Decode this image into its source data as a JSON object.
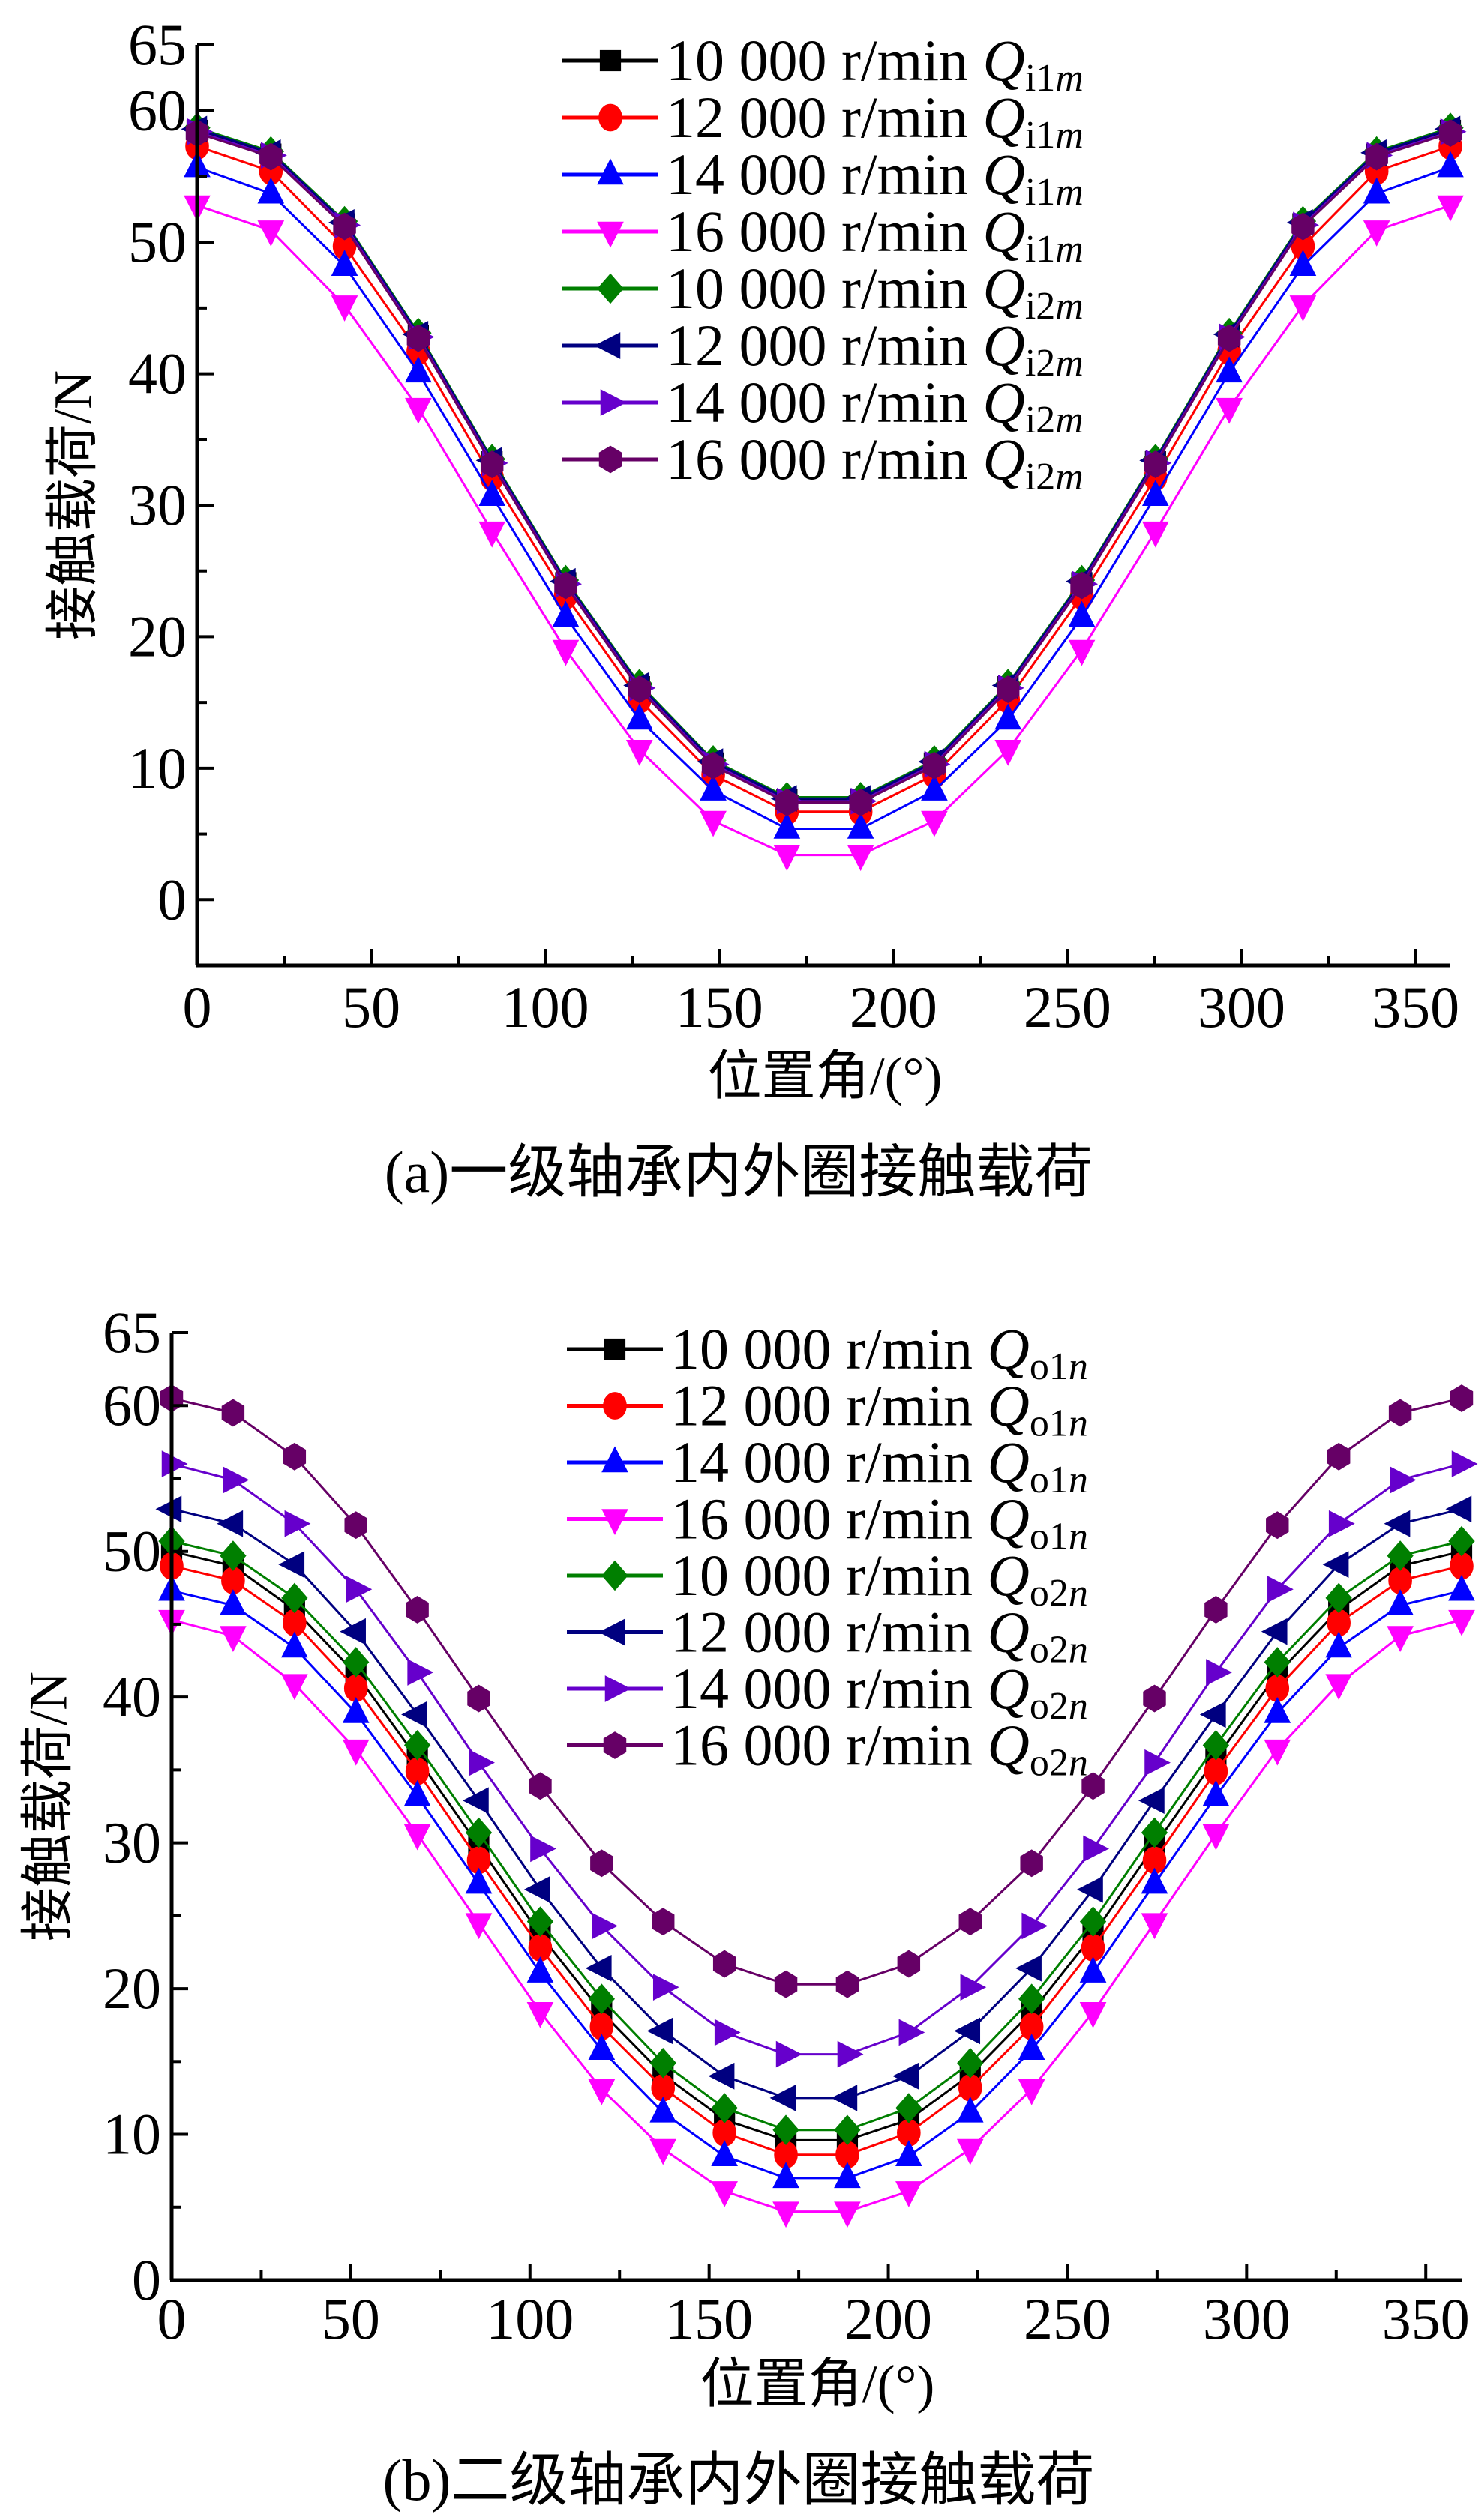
{
  "chart_data": [
    {
      "type": "line",
      "panel": "a",
      "caption": "(a)一级轴承内外圈接触载荷",
      "xlabel": "位置角/(°)",
      "ylabel": "接触载荷/N",
      "xlim": [
        0,
        360
      ],
      "ylim": [
        -5,
        65
      ],
      "xticks": [
        "0",
        "50",
        "100",
        "150",
        "200",
        "250",
        "300",
        "350"
      ],
      "yticks": [
        "0",
        "10",
        "20",
        "30",
        "40",
        "50",
        "60",
        "65"
      ],
      "ytick_values": [
        0,
        10,
        20,
        30,
        40,
        50,
        60,
        65
      ],
      "xtick_values": [
        0,
        50,
        100,
        150,
        200,
        250,
        300,
        350
      ],
      "grid": false,
      "legend_position": "top-center",
      "x": [
        0,
        21.18,
        42.35,
        63.53,
        84.71,
        105.88,
        127.06,
        148.24,
        169.41,
        190.59,
        211.76,
        232.94,
        254.12,
        275.29,
        296.47,
        317.65,
        338.82,
        360
      ],
      "series": [
        {
          "name": "10 000 r/min Q",
          "sub": "i1",
          "subi": "m",
          "color": "#000000",
          "marker": "square",
          "values": [
            58.5,
            56.7,
            51.4,
            42.9,
            33.3,
            24.1,
            16.2,
            10.4,
            7.6,
            7.6,
            10.4,
            16.2,
            24.1,
            33.3,
            42.9,
            51.4,
            56.7,
            58.5
          ]
        },
        {
          "name": "12 000 r/min Q",
          "sub": "i1",
          "subi": "m",
          "color": "#ff0000",
          "marker": "circle",
          "values": [
            57.3,
            55.4,
            49.7,
            41.7,
            32.1,
            23.1,
            15.2,
            9.5,
            6.7,
            6.7,
            9.5,
            15.2,
            23.1,
            32.1,
            41.7,
            49.7,
            55.4,
            57.3
          ]
        },
        {
          "name": "14 000 r/min Q",
          "sub": "i1",
          "subi": "m",
          "color": "#0000ff",
          "marker": "triangle-up",
          "values": [
            55.7,
            53.7,
            48.2,
            40.1,
            30.7,
            21.5,
            13.7,
            8.3,
            5.4,
            5.4,
            8.3,
            13.7,
            21.5,
            30.7,
            40.1,
            48.2,
            53.7,
            55.7
          ]
        },
        {
          "name": "16 000 r/min Q",
          "sub": "i1",
          "subi": "m",
          "color": "#ff00ff",
          "marker": "triangle-down",
          "values": [
            52.8,
            50.9,
            45.2,
            37.4,
            28.0,
            19.0,
            11.4,
            6.0,
            3.4,
            3.4,
            6.0,
            11.4,
            19.0,
            28.0,
            37.4,
            45.2,
            50.9,
            52.8
          ]
        },
        {
          "name": "10 000 r/min Q",
          "sub": "i2",
          "subi": "m",
          "color": "#007f00",
          "marker": "diamond",
          "values": [
            58.7,
            56.9,
            51.6,
            43.1,
            33.5,
            24.3,
            16.4,
            10.6,
            7.8,
            7.8,
            10.6,
            16.4,
            24.3,
            33.5,
            43.1,
            51.6,
            56.9,
            58.7
          ]
        },
        {
          "name": "12 000 r/min Q",
          "sub": "i2",
          "subi": "m",
          "color": "#000080",
          "marker": "triangle-left",
          "values": [
            58.6,
            56.8,
            51.5,
            43.0,
            33.4,
            24.2,
            16.3,
            10.5,
            7.7,
            7.7,
            10.5,
            16.3,
            24.2,
            33.4,
            43.0,
            51.5,
            56.8,
            58.6
          ]
        },
        {
          "name": "14 000 r/min Q",
          "sub": "i2",
          "subi": "m",
          "color": "#6600cc",
          "marker": "triangle-right",
          "values": [
            58.4,
            56.6,
            51.3,
            42.8,
            33.2,
            24.0,
            16.1,
            10.3,
            7.5,
            7.5,
            10.3,
            16.1,
            24.0,
            33.2,
            42.8,
            51.3,
            56.6,
            58.4
          ]
        },
        {
          "name": "16 000 r/min Q",
          "sub": "i2",
          "subi": "m",
          "color": "#660066",
          "marker": "hexagon",
          "values": [
            58.3,
            56.5,
            51.2,
            42.7,
            33.1,
            23.9,
            16.0,
            10.2,
            7.4,
            7.4,
            10.2,
            16.0,
            23.9,
            33.1,
            42.7,
            51.2,
            56.5,
            58.3
          ]
        }
      ]
    },
    {
      "type": "line",
      "panel": "b",
      "caption": "(b)二级轴承内外圈接触载荷",
      "xlabel": "位置角/(°)",
      "ylabel": "接触载荷/N",
      "xlim": [
        0,
        360
      ],
      "ylim": [
        0,
        65
      ],
      "xticks": [
        "0",
        "50",
        "100",
        "150",
        "200",
        "250",
        "300",
        "350"
      ],
      "yticks": [
        "0",
        "10",
        "20",
        "30",
        "40",
        "50",
        "60",
        "65"
      ],
      "ytick_values": [
        0,
        10,
        20,
        30,
        40,
        50,
        60,
        65
      ],
      "xtick_values": [
        0,
        50,
        100,
        150,
        200,
        250,
        300,
        350
      ],
      "grid": false,
      "legend_position": "top-center",
      "x": [
        0,
        17.14,
        34.29,
        51.43,
        68.57,
        85.71,
        102.86,
        120,
        137.14,
        154.29,
        171.43,
        188.57,
        205.71,
        222.86,
        240,
        257.14,
        274.29,
        291.43,
        308.57,
        325.71,
        342.86,
        360
      ],
      "series": [
        {
          "name": "10 000 r/min Q",
          "sub": "o1",
          "subi": "n",
          "color": "#000000",
          "marker": "square",
          "values": [
            50.0,
            49.0,
            46.0,
            41.6,
            35.8,
            29.8,
            23.7,
            18.4,
            14.1,
            11.0,
            9.6,
            9.6,
            11.0,
            14.1,
            18.4,
            23.7,
            29.8,
            35.8,
            41.6,
            46.0,
            49.0,
            50.0
          ]
        },
        {
          "name": "12 000 r/min Q",
          "sub": "o1",
          "subi": "n",
          "color": "#ff0000",
          "marker": "circle",
          "values": [
            49.0,
            48.0,
            45.1,
            40.6,
            34.9,
            28.8,
            22.8,
            17.4,
            13.2,
            10.1,
            8.6,
            8.6,
            10.1,
            13.2,
            17.4,
            22.8,
            28.8,
            34.9,
            40.6,
            45.1,
            48.0,
            49.0
          ]
        },
        {
          "name": "14 000 r/min Q",
          "sub": "o1",
          "subi": "n",
          "color": "#0000ff",
          "marker": "triangle-up",
          "values": [
            47.3,
            46.3,
            43.4,
            38.9,
            33.2,
            27.2,
            21.1,
            15.8,
            11.5,
            8.5,
            7.0,
            7.0,
            8.5,
            11.5,
            15.8,
            21.1,
            27.2,
            33.2,
            38.9,
            43.4,
            46.3,
            47.3
          ]
        },
        {
          "name": "16 000 r/min Q",
          "sub": "o1",
          "subi": "n",
          "color": "#ff00ff",
          "marker": "triangle-down",
          "values": [
            45.3,
            44.2,
            40.9,
            36.4,
            30.6,
            24.5,
            18.4,
            13.1,
            9.0,
            6.1,
            4.7,
            4.7,
            6.1,
            9.0,
            13.1,
            18.4,
            24.5,
            30.6,
            36.4,
            40.9,
            44.2,
            45.3
          ]
        },
        {
          "name": "10 000 r/min Q",
          "sub": "o2",
          "subi": "n",
          "color": "#007f00",
          "marker": "diamond",
          "values": [
            50.7,
            49.7,
            46.8,
            42.4,
            36.7,
            30.7,
            24.6,
            19.3,
            14.9,
            11.8,
            10.3,
            10.3,
            11.8,
            14.9,
            19.3,
            24.6,
            30.7,
            36.7,
            42.4,
            46.8,
            49.7,
            50.7
          ]
        },
        {
          "name": "12 000 r/min Q",
          "sub": "o2",
          "subi": "n",
          "color": "#000080",
          "marker": "triangle-left",
          "values": [
            52.9,
            51.9,
            49.1,
            44.5,
            38.8,
            32.9,
            26.8,
            21.4,
            17.1,
            14.0,
            12.5,
            12.5,
            14.0,
            17.1,
            21.4,
            26.8,
            32.9,
            38.8,
            44.5,
            49.1,
            51.9,
            52.9
          ]
        },
        {
          "name": "14 000 r/min Q",
          "sub": "o2",
          "subi": "n",
          "color": "#6600cc",
          "marker": "triangle-right",
          "values": [
            56.0,
            54.9,
            51.9,
            47.4,
            41.7,
            35.5,
            29.6,
            24.3,
            20.1,
            17.0,
            15.5,
            15.5,
            17.0,
            20.1,
            24.3,
            29.6,
            35.5,
            41.7,
            47.4,
            51.9,
            54.9,
            56.0
          ]
        },
        {
          "name": "16 000 r/min Q",
          "sub": "o2",
          "subi": "n",
          "color": "#660066",
          "marker": "hexagon",
          "values": [
            60.5,
            59.5,
            56.5,
            51.8,
            46.0,
            39.9,
            33.9,
            28.6,
            24.6,
            21.7,
            20.3,
            20.3,
            21.7,
            24.6,
            28.6,
            33.9,
            39.9,
            46.0,
            51.8,
            56.5,
            59.5,
            60.5
          ]
        }
      ]
    }
  ]
}
